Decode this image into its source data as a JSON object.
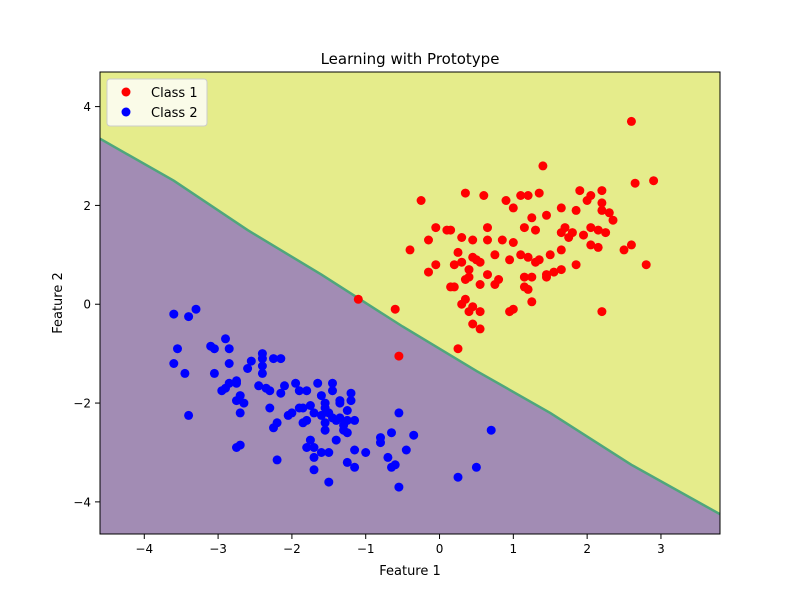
{
  "chart_data": {
    "type": "scatter",
    "title": "Learning with Prototype",
    "xlabel": "Feature 1",
    "ylabel": "Feature 2",
    "xlim": [
      -4.6,
      3.8
    ],
    "ylim": [
      -4.65,
      4.7
    ],
    "x_ticks": [
      -4,
      -3,
      -2,
      -1,
      0,
      1,
      2,
      3
    ],
    "y_ticks": [
      -4,
      -2,
      0,
      2,
      4
    ],
    "grid": false,
    "legend_position": "top-left",
    "decision_boundary": {
      "points": [
        [
          -4.6,
          3.35
        ],
        [
          -3.6,
          2.5
        ],
        [
          -2.6,
          1.5
        ],
        [
          -1.6,
          0.6
        ],
        [
          -0.5,
          -0.45
        ],
        [
          0.5,
          -1.35
        ],
        [
          1.5,
          -2.2
        ],
        [
          2.6,
          -3.25
        ],
        [
          3.8,
          -4.25
        ]
      ],
      "upper_region_color": "#e5ec8b",
      "lower_region_color": "#a28cb4",
      "line_color": "#4fa67c"
    },
    "series": [
      {
        "name": "Class 1",
        "color": "#ff0000",
        "points": [
          [
            2.6,
            3.7
          ],
          [
            1.4,
            2.8
          ],
          [
            2.9,
            2.5
          ],
          [
            2.65,
            2.45
          ],
          [
            1.9,
            2.3
          ],
          [
            2.2,
            2.3
          ],
          [
            0.35,
            2.25
          ],
          [
            0.6,
            2.2
          ],
          [
            1.1,
            2.2
          ],
          [
            1.2,
            2.2
          ],
          [
            1.35,
            2.25
          ],
          [
            2.05,
            2.2
          ],
          [
            -0.25,
            2.1
          ],
          [
            0.9,
            2.1
          ],
          [
            2.0,
            2.1
          ],
          [
            2.2,
            2.05
          ],
          [
            1.65,
            1.95
          ],
          [
            0.1,
            1.5
          ],
          [
            1.0,
            1.95
          ],
          [
            1.85,
            1.9
          ],
          [
            2.3,
            1.85
          ],
          [
            2.2,
            1.9
          ],
          [
            1.45,
            1.8
          ],
          [
            1.25,
            1.75
          ],
          [
            2.35,
            1.7
          ],
          [
            -0.05,
            1.55
          ],
          [
            0.15,
            1.5
          ],
          [
            0.65,
            1.55
          ],
          [
            1.3,
            1.5
          ],
          [
            1.15,
            1.55
          ],
          [
            1.7,
            1.55
          ],
          [
            2.15,
            1.5
          ],
          [
            2.05,
            1.55
          ],
          [
            1.8,
            1.45
          ],
          [
            1.95,
            1.4
          ],
          [
            1.75,
            1.35
          ],
          [
            2.25,
            1.45
          ],
          [
            0.3,
            1.35
          ],
          [
            0.45,
            1.3
          ],
          [
            0.65,
            1.3
          ],
          [
            1.0,
            1.25
          ],
          [
            -0.15,
            1.3
          ],
          [
            0.85,
            1.3
          ],
          [
            1.65,
            1.45
          ],
          [
            2.6,
            1.2
          ],
          [
            2.05,
            1.2
          ],
          [
            2.15,
            1.15
          ],
          [
            2.5,
            1.1
          ],
          [
            -0.4,
            1.1
          ],
          [
            1.65,
            1.1
          ],
          [
            0.25,
            1.05
          ],
          [
            1.1,
            1.0
          ],
          [
            1.2,
            0.95
          ],
          [
            1.5,
            1.0
          ],
          [
            0.75,
            1.0
          ],
          [
            0.5,
            0.9
          ],
          [
            0.45,
            0.95
          ],
          [
            0.3,
            0.85
          ],
          [
            0.2,
            0.8
          ],
          [
            0.55,
            0.85
          ],
          [
            0.95,
            0.9
          ],
          [
            1.3,
            0.85
          ],
          [
            1.35,
            0.9
          ],
          [
            -0.05,
            0.8
          ],
          [
            1.85,
            0.8
          ],
          [
            2.8,
            0.8
          ],
          [
            0.4,
            0.7
          ],
          [
            0.65,
            0.6
          ],
          [
            1.15,
            0.55
          ],
          [
            1.25,
            0.55
          ],
          [
            1.45,
            0.6
          ],
          [
            1.55,
            0.65
          ],
          [
            -0.15,
            0.65
          ],
          [
            0.4,
            0.55
          ],
          [
            0.35,
            0.5
          ],
          [
            0.8,
            0.5
          ],
          [
            1.45,
            0.55
          ],
          [
            1.65,
            0.7
          ],
          [
            0.2,
            0.35
          ],
          [
            0.15,
            0.35
          ],
          [
            0.55,
            0.4
          ],
          [
            0.75,
            0.4
          ],
          [
            1.15,
            0.35
          ],
          [
            1.2,
            0.3
          ],
          [
            0.35,
            0.1
          ],
          [
            0.3,
            0.0
          ],
          [
            0.45,
            -0.05
          ],
          [
            1.25,
            0.05
          ],
          [
            0.55,
            -0.15
          ],
          [
            0.4,
            -0.15
          ],
          [
            0.95,
            -0.15
          ],
          [
            1.0,
            -0.1
          ],
          [
            2.2,
            -0.15
          ],
          [
            0.45,
            -0.4
          ],
          [
            0.55,
            -0.5
          ],
          [
            0.25,
            -0.9
          ],
          [
            -1.1,
            0.1
          ],
          [
            -0.6,
            -0.1
          ],
          [
            -0.55,
            -1.05
          ]
        ]
      },
      {
        "name": "Class 2",
        "color": "#0000ff",
        "points": [
          [
            -3.3,
            -0.1
          ],
          [
            -3.6,
            -0.2
          ],
          [
            -3.4,
            -0.25
          ],
          [
            -2.9,
            -0.7
          ],
          [
            -3.1,
            -0.85
          ],
          [
            -3.05,
            -0.9
          ],
          [
            -2.85,
            -0.9
          ],
          [
            -3.55,
            -0.9
          ],
          [
            -2.4,
            -1.0
          ],
          [
            -2.4,
            -1.1
          ],
          [
            -2.55,
            -1.15
          ],
          [
            -2.25,
            -1.1
          ],
          [
            -2.15,
            -1.1
          ],
          [
            -3.6,
            -1.2
          ],
          [
            -2.85,
            -1.2
          ],
          [
            -2.4,
            -1.25
          ],
          [
            -2.6,
            -1.3
          ],
          [
            -3.45,
            -1.4
          ],
          [
            -3.05,
            -1.4
          ],
          [
            -2.4,
            -1.4
          ],
          [
            -2.75,
            -1.55
          ],
          [
            -2.75,
            -1.6
          ],
          [
            -2.85,
            -1.6
          ],
          [
            -1.95,
            -1.6
          ],
          [
            -1.65,
            -1.6
          ],
          [
            -1.45,
            -1.6
          ],
          [
            -2.45,
            -1.65
          ],
          [
            -2.35,
            -1.7
          ],
          [
            -2.1,
            -1.65
          ],
          [
            -2.9,
            -1.7
          ],
          [
            -2.95,
            -1.75
          ],
          [
            -2.3,
            -1.75
          ],
          [
            -1.9,
            -1.75
          ],
          [
            -2.15,
            -1.8
          ],
          [
            -1.8,
            -1.75
          ],
          [
            -1.45,
            -1.75
          ],
          [
            -1.2,
            -1.8
          ],
          [
            -1.6,
            -1.85
          ],
          [
            -2.7,
            -1.85
          ],
          [
            -2.75,
            -1.95
          ],
          [
            -1.35,
            -1.95
          ],
          [
            -1.35,
            -2.0
          ],
          [
            -1.2,
            -1.95
          ],
          [
            -1.55,
            -2.0
          ],
          [
            -2.65,
            -2.0
          ],
          [
            -1.75,
            -2.05
          ],
          [
            -1.9,
            -2.1
          ],
          [
            -1.85,
            -2.1
          ],
          [
            -1.55,
            -2.1
          ],
          [
            -1.25,
            -2.15
          ],
          [
            -2.3,
            -2.1
          ],
          [
            -2.0,
            -2.2
          ],
          [
            -1.7,
            -2.2
          ],
          [
            -1.5,
            -2.2
          ],
          [
            -2.05,
            -2.25
          ],
          [
            -1.6,
            -2.25
          ],
          [
            -2.7,
            -2.2
          ],
          [
            -3.4,
            -2.25
          ],
          [
            -1.45,
            -2.3
          ],
          [
            -1.35,
            -2.3
          ],
          [
            -1.25,
            -2.35
          ],
          [
            -1.15,
            -2.35
          ],
          [
            -1.4,
            -2.35
          ],
          [
            -0.55,
            -2.2
          ],
          [
            -1.8,
            -2.35
          ],
          [
            -2.2,
            -2.4
          ],
          [
            -1.85,
            -2.4
          ],
          [
            -1.55,
            -2.4
          ],
          [
            -1.3,
            -2.45
          ],
          [
            -2.25,
            -2.5
          ],
          [
            -1.55,
            -2.55
          ],
          [
            -1.3,
            -2.55
          ],
          [
            -1.25,
            -2.6
          ],
          [
            -0.65,
            -2.6
          ],
          [
            -0.35,
            -2.65
          ],
          [
            -0.8,
            -2.7
          ],
          [
            0.7,
            -2.55
          ],
          [
            -1.75,
            -2.75
          ],
          [
            -1.4,
            -2.75
          ],
          [
            -0.8,
            -2.8
          ],
          [
            -1.8,
            -2.9
          ],
          [
            -1.7,
            -2.9
          ],
          [
            -2.7,
            -2.85
          ],
          [
            -2.75,
            -2.9
          ],
          [
            -1.15,
            -2.95
          ],
          [
            -1.5,
            -3.0
          ],
          [
            -1.6,
            -3.0
          ],
          [
            -1.0,
            -3.0
          ],
          [
            -0.45,
            -2.95
          ],
          [
            -1.7,
            -3.1
          ],
          [
            -0.7,
            -3.1
          ],
          [
            -2.2,
            -3.15
          ],
          [
            -1.25,
            -3.2
          ],
          [
            -1.15,
            -3.3
          ],
          [
            -0.6,
            -3.25
          ],
          [
            -0.65,
            -3.3
          ],
          [
            -1.7,
            -3.35
          ],
          [
            0.5,
            -3.3
          ],
          [
            0.25,
            -3.5
          ],
          [
            -1.5,
            -3.6
          ],
          [
            -0.55,
            -3.7
          ]
        ]
      }
    ]
  }
}
